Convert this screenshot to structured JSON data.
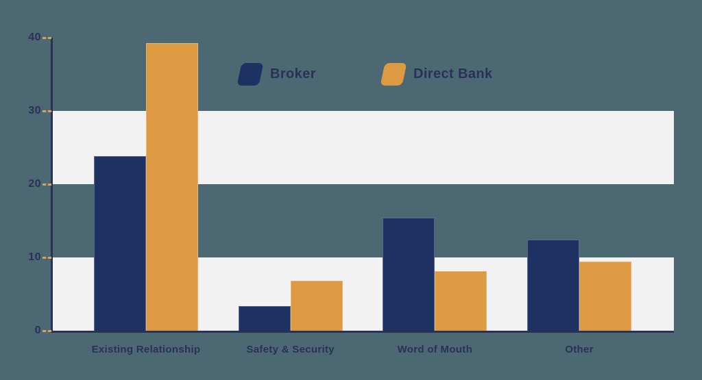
{
  "chart_data": {
    "type": "bar",
    "title": "",
    "xlabel": "",
    "ylabel": "",
    "categories": [
      "Existing Relationship",
      "Safety & Security",
      "Word of Mouth",
      "Other"
    ],
    "series": [
      {
        "name": "Broker",
        "color": "#1e3163",
        "values": [
          23.8,
          3.4,
          15.4,
          12.4
        ]
      },
      {
        "name": "Direct Bank",
        "color": "#de9a42",
        "values": [
          39.3,
          6.8,
          8.1,
          9.4
        ]
      }
    ],
    "ylim": [
      0,
      40
    ],
    "yticks": [
      0,
      10,
      20,
      30,
      40
    ],
    "grid": "alternating horizontal bands (0-10 and 20-30 highlighted)",
    "legend_position": "top-center"
  },
  "legend": {
    "items": [
      {
        "label": "Broker",
        "color": "#1e3163"
      },
      {
        "label": "Direct Bank",
        "color": "#de9a42"
      }
    ]
  },
  "colors": {
    "background": "#4c6973",
    "band": "#f2f2f3",
    "axis": "#2a3156",
    "text": "#2a3156",
    "tick_dash": "#d9a05b",
    "broker": "#1e3163",
    "direct_bank": "#de9a42"
  }
}
